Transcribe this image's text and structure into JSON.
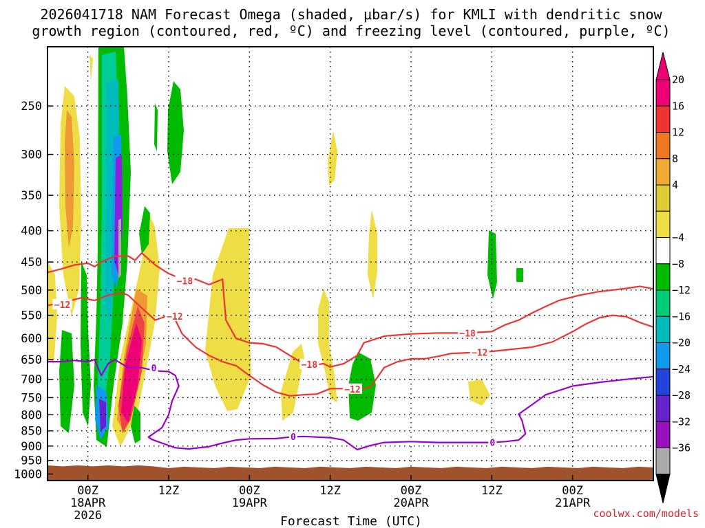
{
  "chart_data": {
    "type": "heatmap",
    "title_line1": "2026041718 NAM Forecast Omega (shaded, μbar/s) for KMLI with dendritic snow",
    "title_line2": "growth region (contoured, red, ºC) and freezing level (contoured, purple, ºC)",
    "xlabel": "Forecast Time (UTC)",
    "credit": "coolwx.com/models",
    "y_ticks": [
      250,
      300,
      350,
      400,
      450,
      500,
      550,
      600,
      650,
      700,
      750,
      800,
      850,
      900,
      950,
      1000
    ],
    "ylim": [
      1025,
      200
    ],
    "y_scale": "log",
    "x_range_hours": [
      -6,
      84
    ],
    "x_ticks": [
      {
        "hour": 0,
        "lines": [
          "00Z",
          "18APR",
          "2026"
        ]
      },
      {
        "hour": 12,
        "lines": [
          "12Z"
        ]
      },
      {
        "hour": 24,
        "lines": [
          "00Z",
          "19APR"
        ]
      },
      {
        "hour": 36,
        "lines": [
          "12Z"
        ]
      },
      {
        "hour": 48,
        "lines": [
          "00Z",
          "20APR"
        ]
      },
      {
        "hour": 60,
        "lines": [
          "12Z"
        ]
      },
      {
        "hour": 72,
        "lines": [
          "00Z",
          "21APR"
        ]
      }
    ],
    "grid": true,
    "colorbar": {
      "labels": [
        "20",
        "16",
        "12",
        "8",
        "4",
        "−4",
        "−8",
        "−12",
        "−16",
        "−20",
        "−24",
        "−28",
        "−32",
        "−36"
      ],
      "colors": [
        "#ee0077",
        "#ee3333",
        "#ee7722",
        "#eeaa33",
        "#ddcc33",
        "#eedd44",
        "#ffffff",
        "#00bb00",
        "#00cc77",
        "#00bbbb",
        "#1199ee",
        "#2244dd",
        "#6622cc",
        "#9911bb",
        "#aaaaaa"
      ],
      "arrow_top": "#ee0077",
      "arrow_bottom": "#000000"
    },
    "ground": {
      "color": "#a0522d",
      "pressure_top": 968
    },
    "contours": [
      {
        "label": "−12",
        "color": "#ee3333",
        "points": [
          [
            -6,
            530
          ],
          [
            -4,
            525
          ],
          [
            -1,
            515
          ],
          [
            1,
            520
          ],
          [
            3,
            510
          ],
          [
            5,
            505
          ],
          [
            6,
            510
          ],
          [
            8,
            535
          ],
          [
            10,
            560
          ],
          [
            12,
            550
          ],
          [
            13,
            560
          ],
          [
            14,
            590
          ],
          [
            16,
            620
          ],
          [
            18,
            640
          ],
          [
            20,
            655
          ],
          [
            22,
            665
          ],
          [
            24,
            690
          ],
          [
            26,
            715
          ],
          [
            28,
            735
          ],
          [
            30,
            745
          ],
          [
            32,
            742
          ],
          [
            34,
            740
          ],
          [
            36,
            725
          ],
          [
            38,
            725
          ],
          [
            40,
            730
          ],
          [
            42,
            720
          ],
          [
            43,
            695
          ],
          [
            44,
            670
          ],
          [
            46,
            655
          ],
          [
            48,
            648
          ],
          [
            50,
            648
          ],
          [
            52,
            642
          ],
          [
            54,
            635
          ],
          [
            57,
            633
          ],
          [
            60,
            630
          ],
          [
            63,
            625
          ],
          [
            66,
            620
          ],
          [
            69,
            608
          ],
          [
            72,
            585
          ],
          [
            74,
            568
          ],
          [
            76,
            555
          ],
          [
            78,
            550
          ],
          [
            80,
            553
          ],
          [
            82,
            565
          ],
          [
            84,
            575
          ]
        ],
        "labels": [
          [
            -3.8,
            528
          ],
          [
            12.9,
            552
          ],
          [
            39.3,
            726
          ],
          [
            58.2,
            632
          ]
        ]
      },
      {
        "label": "−18",
        "color": "#ee3333",
        "points": [
          [
            -6,
            468
          ],
          [
            -4,
            462
          ],
          [
            -2,
            455
          ],
          [
            0,
            452
          ],
          [
            1,
            458
          ],
          [
            2,
            450
          ],
          [
            4,
            440
          ],
          [
            6,
            440
          ],
          [
            7,
            447
          ],
          [
            8,
            435
          ],
          [
            10,
            455
          ],
          [
            12,
            470
          ],
          [
            14,
            480
          ],
          [
            16,
            480
          ],
          [
            18,
            490
          ],
          [
            20,
            480
          ],
          [
            20.5,
            560
          ],
          [
            22,
            600
          ],
          [
            24,
            610
          ],
          [
            26,
            612
          ],
          [
            28,
            620
          ],
          [
            30,
            640
          ],
          [
            32,
            660
          ],
          [
            33,
            665
          ],
          [
            35,
            660
          ],
          [
            36,
            668
          ],
          [
            38,
            660
          ],
          [
            40,
            640
          ],
          [
            41,
            610
          ],
          [
            44,
            595
          ],
          [
            48,
            590
          ],
          [
            52,
            588
          ],
          [
            56,
            588
          ],
          [
            60,
            585
          ],
          [
            62,
            570
          ],
          [
            64,
            560
          ],
          [
            66,
            545
          ],
          [
            68,
            532
          ],
          [
            70,
            520
          ],
          [
            73,
            510
          ],
          [
            76,
            503
          ],
          [
            78,
            500
          ],
          [
            80,
            497
          ],
          [
            82,
            493
          ],
          [
            84,
            498
          ]
        ],
        "labels": [
          [
            14.4,
            483
          ],
          [
            32.9,
            662
          ],
          [
            56.4,
            588
          ]
        ]
      },
      {
        "label": "0",
        "color": "#9900cc",
        "points": [
          [
            -6,
            655
          ],
          [
            -4,
            655
          ],
          [
            -2,
            652
          ],
          [
            0,
            655
          ],
          [
            1,
            650
          ],
          [
            1.5,
            670
          ],
          [
            2,
            690
          ],
          [
            3,
            660
          ],
          [
            4,
            650
          ],
          [
            6,
            670
          ],
          [
            8,
            670
          ],
          [
            10,
            678
          ],
          [
            12,
            680
          ],
          [
            13,
            690
          ],
          [
            13.5,
            718
          ],
          [
            12.5,
            760
          ],
          [
            12,
            800
          ],
          [
            11,
            840
          ],
          [
            9,
            870
          ],
          [
            9.5,
            878
          ],
          [
            11,
            890
          ],
          [
            13,
            906
          ],
          [
            15,
            910
          ],
          [
            18,
            902
          ],
          [
            20,
            890
          ],
          [
            22,
            880
          ],
          [
            24,
            876
          ],
          [
            28,
            875
          ],
          [
            30,
            870
          ],
          [
            32,
            868
          ],
          [
            36,
            872
          ],
          [
            38,
            880
          ],
          [
            40,
            912
          ],
          [
            42,
            898
          ],
          [
            44,
            888
          ],
          [
            48,
            885
          ],
          [
            52,
            888
          ],
          [
            56,
            888
          ],
          [
            60,
            888
          ],
          [
            62,
            885
          ],
          [
            64,
            880
          ],
          [
            65,
            860
          ],
          [
            64.5,
            818
          ],
          [
            64,
            798
          ],
          [
            66,
            770
          ],
          [
            68,
            742
          ],
          [
            70,
            730
          ],
          [
            72,
            718
          ],
          [
            76,
            708
          ],
          [
            80,
            700
          ],
          [
            84,
            693
          ]
        ],
        "labels": [
          [
            9.8,
            670
          ],
          [
            30.5,
            869
          ],
          [
            60.1,
            888
          ]
        ]
      }
    ]
  }
}
